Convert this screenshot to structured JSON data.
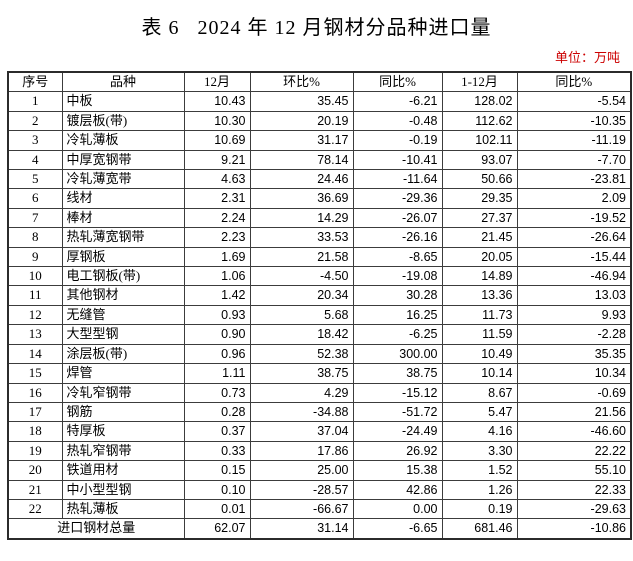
{
  "title": "表 6   2024 年 12 月钢材分品种进口量",
  "unit_label": "单位：万吨",
  "colors": {
    "unit_text": "#cc0000",
    "body_text": "#000000",
    "grid_line": "#3c3c3c",
    "background": "#ffffff"
  },
  "table": {
    "headers": [
      "序号",
      "品种",
      "12月",
      "环比%",
      "同比%",
      "1-12月",
      "同比%"
    ],
    "rows": [
      [
        "1",
        "中板",
        "10.43",
        "35.45",
        "-6.21",
        "128.02",
        "-5.54"
      ],
      [
        "2",
        "镀层板(带)",
        "10.30",
        "20.19",
        "-0.48",
        "112.62",
        "-10.35"
      ],
      [
        "3",
        "冷轧薄板",
        "10.69",
        "31.17",
        "-0.19",
        "102.11",
        "-11.19"
      ],
      [
        "4",
        "中厚宽钢带",
        "9.21",
        "78.14",
        "-10.41",
        "93.07",
        "-7.70"
      ],
      [
        "5",
        "冷轧薄宽带",
        "4.63",
        "24.46",
        "-11.64",
        "50.66",
        "-23.81"
      ],
      [
        "6",
        "线材",
        "2.31",
        "36.69",
        "-29.36",
        "29.35",
        "2.09"
      ],
      [
        "7",
        "棒材",
        "2.24",
        "14.29",
        "-26.07",
        "27.37",
        "-19.52"
      ],
      [
        "8",
        "热轧薄宽钢带",
        "2.23",
        "33.53",
        "-26.16",
        "21.45",
        "-26.64"
      ],
      [
        "9",
        "厚钢板",
        "1.69",
        "21.58",
        "-8.65",
        "20.05",
        "-15.44"
      ],
      [
        "10",
        "电工钢板(带)",
        "1.06",
        "-4.50",
        "-19.08",
        "14.89",
        "-46.94"
      ],
      [
        "11",
        "其他钢材",
        "1.42",
        "20.34",
        "30.28",
        "13.36",
        "13.03"
      ],
      [
        "12",
        "无缝管",
        "0.93",
        "5.68",
        "16.25",
        "11.73",
        "9.93"
      ],
      [
        "13",
        "大型型钢",
        "0.90",
        "18.42",
        "-6.25",
        "11.59",
        "-2.28"
      ],
      [
        "14",
        "涂层板(带)",
        "0.96",
        "52.38",
        "300.00",
        "10.49",
        "35.35"
      ],
      [
        "15",
        "焊管",
        "1.11",
        "38.75",
        "38.75",
        "10.14",
        "10.34"
      ],
      [
        "16",
        "冷轧窄钢带",
        "0.73",
        "4.29",
        "-15.12",
        "8.67",
        "-0.69"
      ],
      [
        "17",
        "钢筋",
        "0.28",
        "-34.88",
        "-51.72",
        "5.47",
        "21.56"
      ],
      [
        "18",
        "特厚板",
        "0.37",
        "37.04",
        "-24.49",
        "4.16",
        "-46.60"
      ],
      [
        "19",
        "热轧窄钢带",
        "0.33",
        "17.86",
        "26.92",
        "3.30",
        "22.22"
      ],
      [
        "20",
        "铁道用材",
        "0.15",
        "25.00",
        "15.38",
        "1.52",
        "55.10"
      ],
      [
        "21",
        "中小型型钢",
        "0.10",
        "-28.57",
        "42.86",
        "1.26",
        "22.33"
      ],
      [
        "22",
        "热轧薄板",
        "0.01",
        "-66.67",
        "0.00",
        "0.19",
        "-29.63"
      ]
    ],
    "total": {
      "label": "进口钢材总量",
      "values": [
        "62.07",
        "31.14",
        "-6.65",
        "681.46",
        "-10.86"
      ]
    }
  }
}
